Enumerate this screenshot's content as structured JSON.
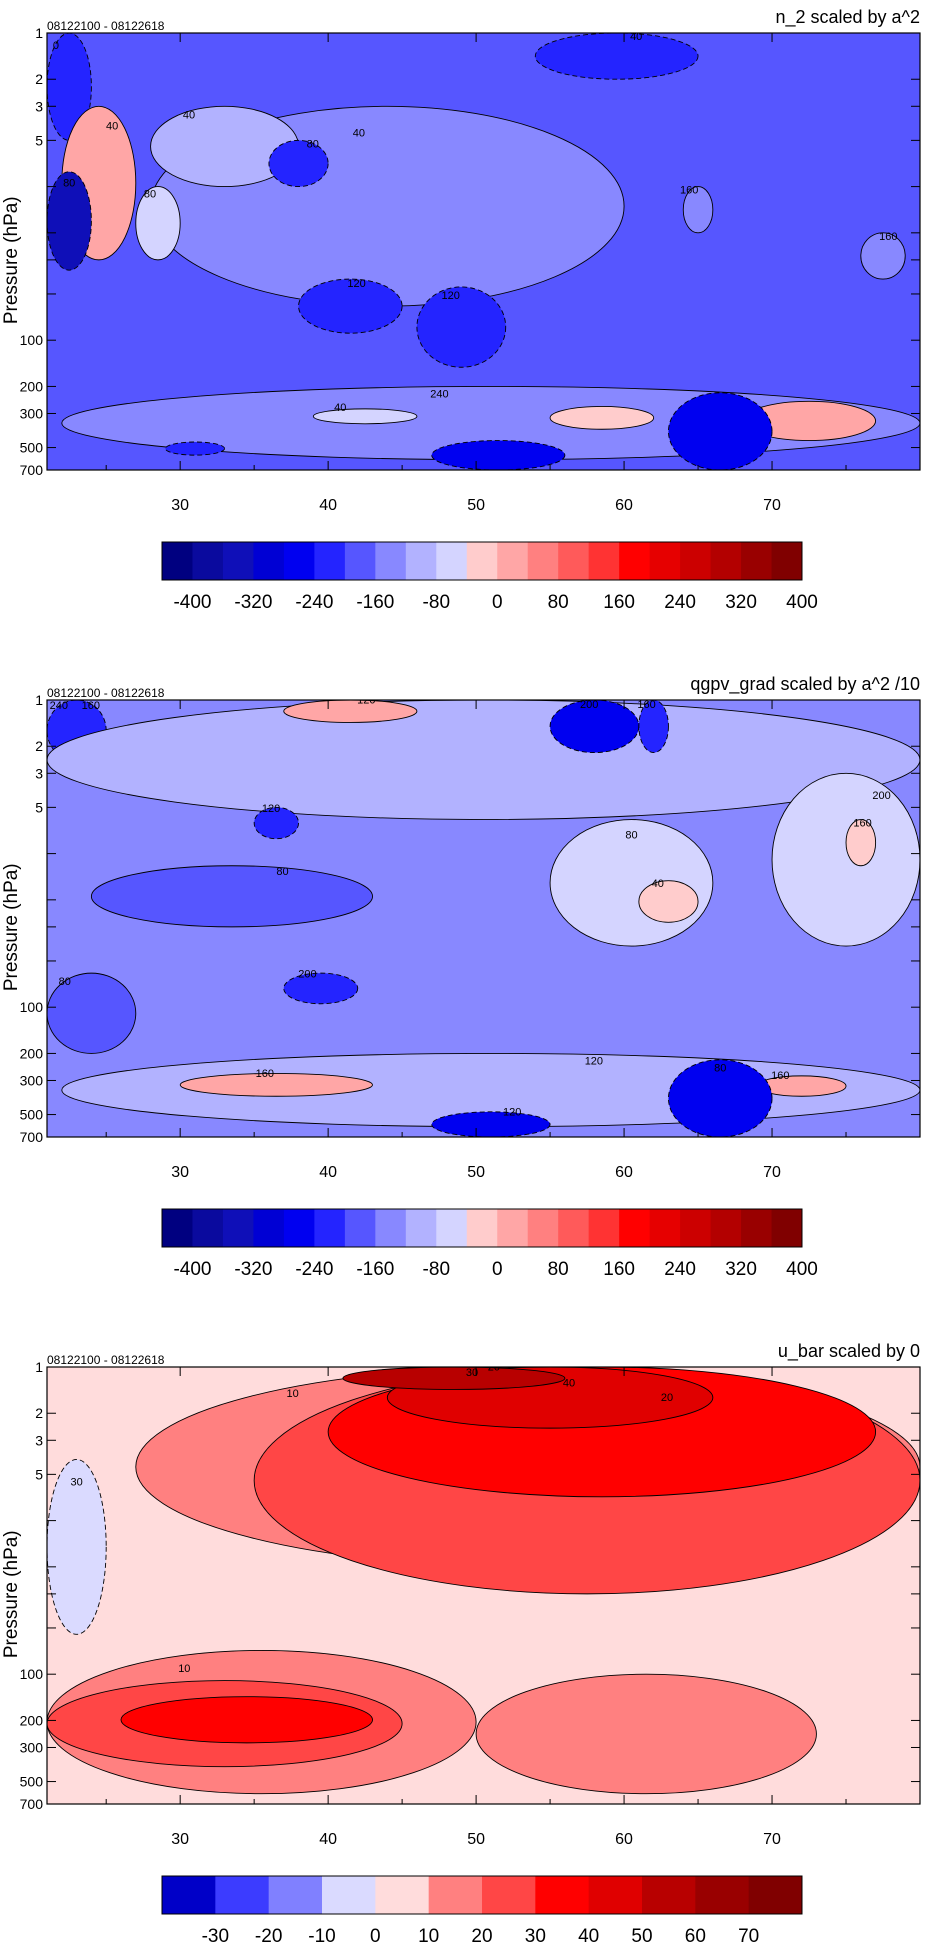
{
  "chart_data": [
    {
      "type": "heatmap",
      "title": "n_2 scaled by a^2",
      "subtitle": "08122100 - 08122618",
      "xlabel": "",
      "ylabel": "Pressure (hPa)",
      "x_ticks": [
        30,
        40,
        50,
        60,
        70
      ],
      "xlim": [
        21,
        80
      ],
      "y_ticks": [
        1,
        2,
        3,
        5,
        10,
        20,
        30,
        50,
        100,
        200,
        300,
        500,
        700
      ],
      "y_tick_labels": [
        "1",
        "2",
        "3",
        "5",
        "",
        "",
        "",
        "",
        "100",
        "200",
        "300",
        "500",
        "700"
      ],
      "ylim": [
        1,
        700
      ],
      "y_scale": "log",
      "contour_labels": [
        "0",
        "40",
        "40",
        "40",
        "40",
        "80",
        "80",
        "80",
        "120",
        "120",
        "160",
        "160",
        "240",
        "40"
      ],
      "colorbar": {
        "labels": [
          "-400",
          "-320",
          "-240",
          "-160",
          "-80",
          "0",
          "80",
          "160",
          "240",
          "320",
          "400"
        ],
        "colors": [
          "#000080",
          "#0a0a9e",
          "#0f0fb8",
          "#0000d4",
          "#0000f0",
          "#2424ff",
          "#5656ff",
          "#8888ff",
          "#b2b2ff",
          "#d4d4ff",
          "#ffcccc",
          "#ffa6a6",
          "#ff8080",
          "#ff5a5a",
          "#ff3333",
          "#ff0000",
          "#e60000",
          "#cc0000",
          "#b30000",
          "#990000",
          "#800000"
        ]
      },
      "regions": [
        {
          "value": 40,
          "x": [
            21,
            80
          ],
          "y": [
            1,
            700
          ]
        },
        {
          "value": -80,
          "x": [
            21,
            24
          ],
          "y": [
            1,
            5
          ]
        },
        {
          "value": -60,
          "x": [
            54,
            65
          ],
          "y": [
            1,
            2
          ]
        },
        {
          "value": 80,
          "x": [
            28,
            60
          ],
          "y": [
            3,
            60
          ]
        },
        {
          "value": 160,
          "x": [
            28,
            38
          ],
          "y": [
            3,
            10
          ]
        },
        {
          "value": 400,
          "x": [
            22,
            27
          ],
          "y": [
            3,
            30
          ]
        },
        {
          "value": -320,
          "x": [
            21,
            24
          ],
          "y": [
            8,
            35
          ]
        },
        {
          "value": 300,
          "x": [
            27,
            30
          ],
          "y": [
            10,
            30
          ]
        },
        {
          "value": -40,
          "x": [
            36,
            40
          ],
          "y": [
            5,
            10
          ]
        },
        {
          "value": -40,
          "x": [
            38,
            45
          ],
          "y": [
            40,
            90
          ]
        },
        {
          "value": -40,
          "x": [
            46,
            52
          ],
          "y": [
            45,
            150
          ]
        },
        {
          "value": 80,
          "x": [
            64,
            66
          ],
          "y": [
            10,
            20
          ]
        },
        {
          "value": 120,
          "x": [
            76,
            79
          ],
          "y": [
            20,
            40
          ]
        },
        {
          "value": 120,
          "x": [
            22,
            80
          ],
          "y": [
            200,
            600
          ]
        },
        {
          "value": 240,
          "x": [
            39,
            46
          ],
          "y": [
            280,
            350
          ]
        },
        {
          "value": 320,
          "x": [
            55,
            62
          ],
          "y": [
            270,
            380
          ]
        },
        {
          "value": 400,
          "x": [
            68,
            77
          ],
          "y": [
            250,
            450
          ]
        },
        {
          "value": -120,
          "x": [
            47,
            56
          ],
          "y": [
            450,
            700
          ]
        },
        {
          "value": -120,
          "x": [
            63,
            70
          ],
          "y": [
            220,
            700
          ]
        },
        {
          "value": -80,
          "x": [
            29,
            33
          ],
          "y": [
            460,
            560
          ]
        }
      ]
    },
    {
      "type": "heatmap",
      "title": "qgpv_grad scaled by a^2 /10",
      "subtitle": "08122100 - 08122618",
      "xlabel": "",
      "ylabel": "Pressure (hPa)",
      "x_ticks": [
        30,
        40,
        50,
        60,
        70
      ],
      "xlim": [
        21,
        80
      ],
      "y_ticks": [
        1,
        2,
        3,
        5,
        10,
        20,
        30,
        50,
        100,
        200,
        300,
        500,
        700
      ],
      "y_tick_labels": [
        "1",
        "2",
        "3",
        "5",
        "",
        "",
        "",
        "",
        "100",
        "200",
        "300",
        "500",
        "700"
      ],
      "ylim": [
        1,
        700
      ],
      "y_scale": "log",
      "contour_labels": [
        "240",
        "120",
        "200",
        "160",
        "80",
        "80",
        "40",
        "200",
        "160",
        "120",
        "80",
        "120",
        "160",
        "160",
        "120",
        "80",
        "200",
        "160"
      ],
      "colorbar": {
        "labels": [
          "-400",
          "-320",
          "-240",
          "-160",
          "-80",
          "0",
          "80",
          "160",
          "240",
          "320",
          "400"
        ],
        "colors": [
          "#000080",
          "#0a0a9e",
          "#0f0fb8",
          "#0000d4",
          "#0000f0",
          "#2424ff",
          "#5656ff",
          "#8888ff",
          "#b2b2ff",
          "#d4d4ff",
          "#ffcccc",
          "#ffa6a6",
          "#ff8080",
          "#ff5a5a",
          "#ff3333",
          "#ff0000",
          "#e60000",
          "#cc0000",
          "#b30000",
          "#990000",
          "#800000"
        ]
      },
      "regions": [
        {
          "value": 120,
          "x": [
            21,
            80
          ],
          "y": [
            1,
            700
          ]
        },
        {
          "value": -60,
          "x": [
            21,
            25
          ],
          "y": [
            1,
            2.5
          ]
        },
        {
          "value": 200,
          "x": [
            21,
            80
          ],
          "y": [
            1,
            6
          ]
        },
        {
          "value": 400,
          "x": [
            37,
            46
          ],
          "y": [
            1,
            1.4
          ]
        },
        {
          "value": -120,
          "x": [
            55,
            61
          ],
          "y": [
            1,
            2.2
          ]
        },
        {
          "value": -80,
          "x": [
            61,
            63
          ],
          "y": [
            1,
            2.2
          ]
        },
        {
          "value": 40,
          "x": [
            24,
            43
          ],
          "y": [
            12,
            30
          ]
        },
        {
          "value": 240,
          "x": [
            55,
            66
          ],
          "y": [
            6,
            40
          ]
        },
        {
          "value": 320,
          "x": [
            61,
            65
          ],
          "y": [
            15,
            28
          ]
        },
        {
          "value": 240,
          "x": [
            70,
            80
          ],
          "y": [
            3,
            40
          ]
        },
        {
          "value": 320,
          "x": [
            75,
            77
          ],
          "y": [
            6,
            12
          ]
        },
        {
          "value": -40,
          "x": [
            35,
            38
          ],
          "y": [
            5,
            8
          ]
        },
        {
          "value": 40,
          "x": [
            21,
            27
          ],
          "y": [
            60,
            200
          ]
        },
        {
          "value": 200,
          "x": [
            22,
            80
          ],
          "y": [
            200,
            600
          ]
        },
        {
          "value": 400,
          "x": [
            30,
            43
          ],
          "y": [
            270,
            380
          ]
        },
        {
          "value": 400,
          "x": [
            69,
            75
          ],
          "y": [
            280,
            380
          ]
        },
        {
          "value": -120,
          "x": [
            47,
            55
          ],
          "y": [
            480,
            700
          ]
        },
        {
          "value": -120,
          "x": [
            63,
            70
          ],
          "y": [
            220,
            700
          ]
        },
        {
          "value": -80,
          "x": [
            37,
            42
          ],
          "y": [
            60,
            95
          ]
        }
      ]
    },
    {
      "type": "heatmap",
      "title": "u_bar scaled by 0",
      "subtitle": "08122100 - 08122618",
      "xlabel": "",
      "ylabel": "Pressure (hPa)",
      "x_ticks": [
        30,
        40,
        50,
        60,
        70
      ],
      "xlim": [
        21,
        80
      ],
      "y_ticks": [
        1,
        2,
        3,
        5,
        10,
        20,
        30,
        50,
        100,
        200,
        300,
        500,
        700
      ],
      "y_tick_labels": [
        "1",
        "2",
        "3",
        "5",
        "",
        "",
        "",
        "",
        "100",
        "200",
        "300",
        "500",
        "700"
      ],
      "ylim": [
        1,
        700
      ],
      "y_scale": "log",
      "contour_labels": [
        "10",
        "20",
        "40",
        "30",
        "20",
        "30",
        "10"
      ],
      "colorbar": {
        "labels": [
          "-30",
          "-20",
          "-10",
          "0",
          "10",
          "20",
          "30",
          "40",
          "50",
          "60",
          "70"
        ],
        "colors": [
          "#0000c8",
          "#3c3cff",
          "#8080ff",
          "#dadaff",
          "#ffdcdc",
          "#ff8080",
          "#ff4646",
          "#ff0000",
          "#e00000",
          "#b80000",
          "#990000",
          "#800000"
        ]
      },
      "regions": [
        {
          "value": 5,
          "x": [
            21,
            80
          ],
          "y": [
            1,
            700
          ]
        },
        {
          "value": 15,
          "x": [
            27,
            80
          ],
          "y": [
            1,
            20
          ]
        },
        {
          "value": 25,
          "x": [
            35,
            80
          ],
          "y": [
            1,
            30
          ]
        },
        {
          "value": 35,
          "x": [
            40,
            77
          ],
          "y": [
            1,
            7
          ]
        },
        {
          "value": 45,
          "x": [
            44,
            66
          ],
          "y": [
            1,
            2.5
          ]
        },
        {
          "value": 55,
          "x": [
            41,
            56
          ],
          "y": [
            1,
            1.4
          ]
        },
        {
          "value": -5,
          "x": [
            21,
            25
          ],
          "y": [
            4,
            55
          ]
        },
        {
          "value": 15,
          "x": [
            21,
            50
          ],
          "y": [
            70,
            600
          ]
        },
        {
          "value": 25,
          "x": [
            21,
            45
          ],
          "y": [
            110,
            400
          ]
        },
        {
          "value": 35,
          "x": [
            26,
            43
          ],
          "y": [
            140,
            280
          ]
        },
        {
          "value": 15,
          "x": [
            50,
            73
          ],
          "y": [
            100,
            600
          ]
        }
      ]
    }
  ]
}
